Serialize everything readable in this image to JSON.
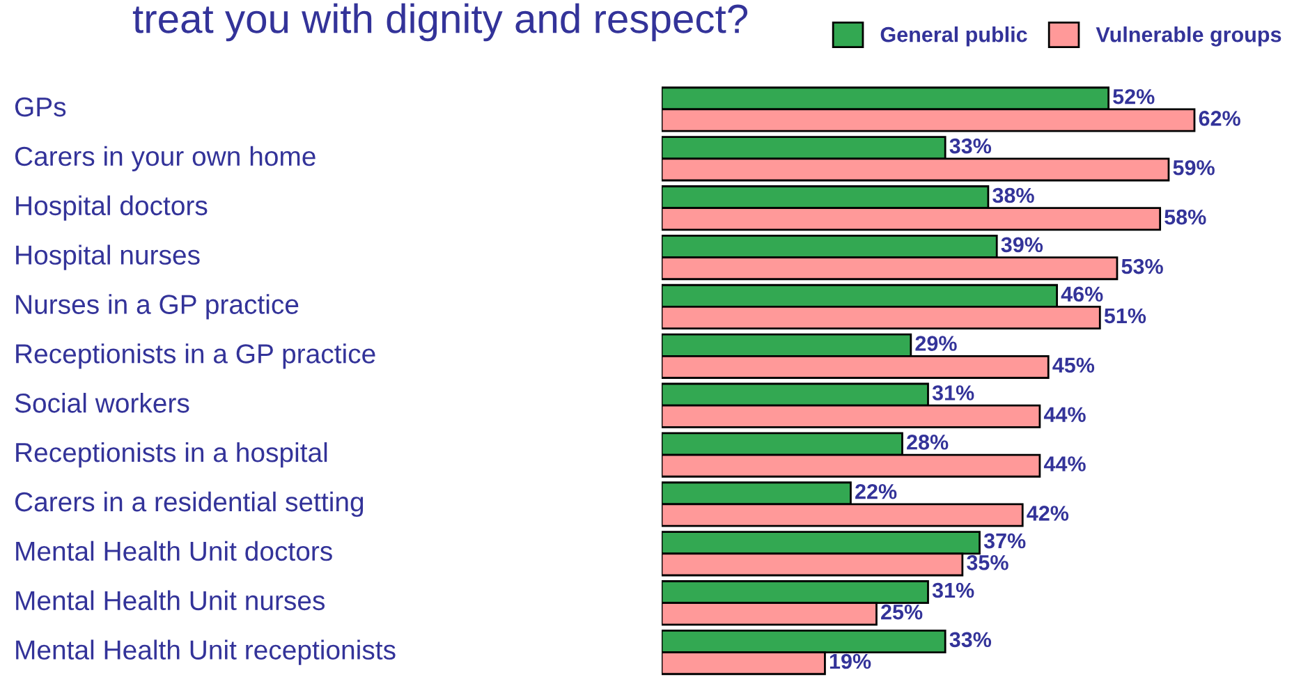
{
  "chart_data": {
    "type": "bar",
    "orientation": "horizontal",
    "title": "treat you with dignity and respect?",
    "categories": [
      "GPs",
      "Carers in your own home",
      "Hospital doctors",
      "Hospital nurses",
      "Nurses in a GP practice",
      "Receptionists in a GP practice",
      "Social workers",
      "Receptionists in a hospital",
      "Carers in a residential setting",
      "Mental Health Unit doctors",
      "Mental Health Unit nurses",
      "Mental Health Unit receptionists"
    ],
    "series": [
      {
        "name": "General public",
        "color": "#33a852",
        "values": [
          52,
          33,
          38,
          39,
          46,
          29,
          31,
          28,
          22,
          37,
          31,
          33
        ],
        "value_labels": [
          "52%",
          "33%",
          "38%",
          "39%",
          "46%",
          "29%",
          "31%",
          "28%",
          "22%",
          "37%",
          "31%",
          "33%"
        ]
      },
      {
        "name": "Vulnerable groups",
        "color": "#ff9999",
        "values": [
          62,
          59,
          58,
          53,
          51,
          45,
          44,
          44,
          42,
          35,
          25,
          19
        ],
        "value_labels": [
          "62%",
          "59%",
          "58%",
          "53%",
          "51%",
          "45%",
          "44%",
          "44%",
          "42%",
          "35%",
          "25%",
          "19%"
        ]
      }
    ],
    "legend": "top right"
  }
}
